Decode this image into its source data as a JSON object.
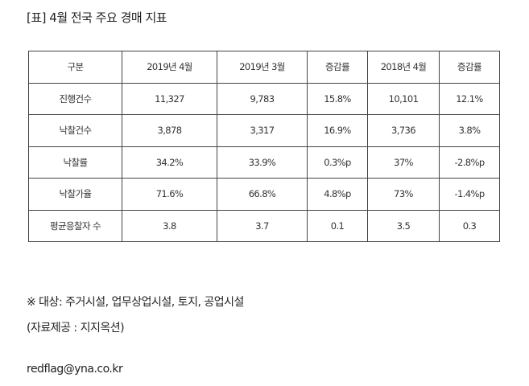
{
  "title": "[표] 4월 전국 주요 경매 지표",
  "table": {
    "headers": [
      "구분",
      "2019년 4월",
      "2019년 3월",
      "증감률",
      "2018년 4월",
      "증감률"
    ],
    "rows": [
      [
        "진행건수",
        "11,327",
        "9,783",
        "15.8%",
        "10,101",
        "12.1%"
      ],
      [
        "낙찰건수",
        "3,878",
        "3,317",
        "16.9%",
        "3,736",
        "3.8%"
      ],
      [
        "낙찰률",
        "34.2%",
        "33.9%",
        "0.3%p",
        "37%",
        "-2.8%p"
      ],
      [
        "낙찰가율",
        "71.6%",
        "66.8%",
        "4.8%p",
        "73%",
        "-1.4%p"
      ],
      [
        "평균응찰자 수",
        "3.8",
        "3.7",
        "0.1",
        "3.5",
        "0.3"
      ]
    ]
  },
  "notes": {
    "target": "※ 대상: 주거시설, 업무상업시설, 토지, 공업시설",
    "source": "(자료제공 : 지지옥션)",
    "email": "redflag@yna.co.kr"
  }
}
